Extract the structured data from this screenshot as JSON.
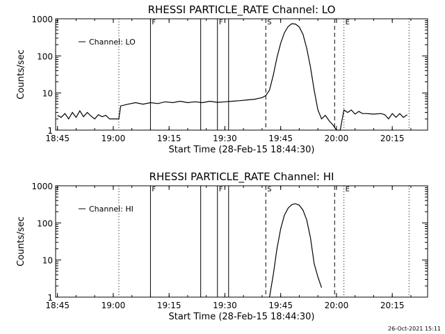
{
  "chart_data": [
    {
      "type": "line",
      "title": "RHESSI PARTICLE_RATE Channel: LO",
      "xlabel": "Start Time (28-Feb-15 18:44:30)",
      "ylabel": "Counts/sec",
      "yscale": "log",
      "ylim": [
        1,
        1000
      ],
      "xlim": [
        "18:44:30",
        "20:24:30"
      ],
      "x_ticks": [
        "18:45",
        "19:00",
        "19:15",
        "19:30",
        "19:45",
        "20:00",
        "20:15"
      ],
      "y_ticks": [
        "1",
        "10",
        "100",
        "1000"
      ],
      "legend": {
        "placement": "top-left",
        "label": "Channel: LO"
      },
      "markers": [
        {
          "time": "19:01:30",
          "style": "dotted",
          "label": ""
        },
        {
          "time": "19:10:00",
          "style": "solid",
          "label": "F"
        },
        {
          "time": "19:23:30",
          "style": "solid",
          "label": ""
        },
        {
          "time": "19:28:00",
          "style": "solid",
          "label": "F"
        },
        {
          "time": "19:31:00",
          "style": "solid",
          "label": ""
        },
        {
          "time": "19:41:00",
          "style": "dashed",
          "label": "S"
        },
        {
          "time": "19:59:30",
          "style": "dashed",
          "label": ""
        },
        {
          "time": "20:02:00",
          "style": "dotted",
          "label": "E"
        },
        {
          "time": "20:19:30",
          "style": "dotted",
          "label": ""
        }
      ],
      "series": [
        {
          "name": "Channel: LO",
          "points": [
            [
              "18:45:00",
              2.5
            ],
            [
              "18:46:00",
              2.2
            ],
            [
              "18:47:00",
              2.8
            ],
            [
              "18:48:00",
              2.0
            ],
            [
              "18:49:00",
              3.0
            ],
            [
              "18:50:00",
              2.2
            ],
            [
              "18:51:00",
              3.3
            ],
            [
              "18:52:00",
              2.3
            ],
            [
              "18:53:00",
              3.0
            ],
            [
              "18:54:00",
              2.4
            ],
            [
              "18:55:00",
              2.0
            ],
            [
              "18:56:00",
              2.6
            ],
            [
              "18:57:00",
              2.3
            ],
            [
              "18:58:00",
              2.5
            ],
            [
              "18:59:00",
              2.0
            ],
            [
              "19:00:00",
              2.0
            ],
            [
              "19:01:00",
              2.0
            ],
            [
              "19:01:30",
              2.0
            ],
            [
              "19:02:00",
              4.5
            ],
            [
              "19:04:00",
              5.0
            ],
            [
              "19:06:00",
              5.5
            ],
            [
              "19:08:00",
              5.0
            ],
            [
              "19:10:00",
              5.5
            ],
            [
              "19:12:00",
              5.2
            ],
            [
              "19:14:00",
              5.8
            ],
            [
              "19:16:00",
              5.5
            ],
            [
              "19:18:00",
              6.0
            ],
            [
              "19:20:00",
              5.5
            ],
            [
              "19:22:00",
              5.8
            ],
            [
              "19:24:00",
              5.5
            ],
            [
              "19:26:00",
              6.0
            ],
            [
              "19:28:00",
              5.6
            ],
            [
              "19:30:00",
              5.8
            ],
            [
              "19:32:00",
              6.0
            ],
            [
              "19:34:00",
              6.2
            ],
            [
              "19:36:00",
              6.5
            ],
            [
              "19:38:00",
              6.8
            ],
            [
              "19:40:00",
              7.5
            ],
            [
              "19:41:00",
              8.5
            ],
            [
              "19:42:00",
              12
            ],
            [
              "19:43:00",
              30
            ],
            [
              "19:44:00",
              90
            ],
            [
              "19:45:00",
              220
            ],
            [
              "19:46:00",
              420
            ],
            [
              "19:47:00",
              620
            ],
            [
              "19:48:00",
              740
            ],
            [
              "19:49:00",
              720
            ],
            [
              "19:50:00",
              600
            ],
            [
              "19:51:00",
              380
            ],
            [
              "19:52:00",
              160
            ],
            [
              "19:53:00",
              50
            ],
            [
              "19:54:00",
              12
            ],
            [
              "19:55:00",
              3.5
            ],
            [
              "19:56:00",
              2.0
            ],
            [
              "19:57:00",
              2.5
            ],
            [
              "19:58:00",
              1.8
            ],
            [
              "19:59:00",
              1.4
            ],
            [
              "20:00:00",
              1.0
            ],
            [
              "20:01:00",
              1.0
            ],
            [
              "20:02:00",
              3.5
            ],
            [
              "20:03:00",
              3.0
            ],
            [
              "20:04:00",
              3.5
            ],
            [
              "20:05:00",
              2.7
            ],
            [
              "20:06:00",
              3.2
            ],
            [
              "20:07:00",
              2.8
            ],
            [
              "20:08:00",
              2.8
            ],
            [
              "20:10:00",
              2.7
            ],
            [
              "20:12:00",
              2.8
            ],
            [
              "20:13:00",
              2.6
            ],
            [
              "20:14:00",
              2.0
            ],
            [
              "20:15:00",
              2.8
            ],
            [
              "20:16:00",
              2.2
            ],
            [
              "20:17:00",
              2.8
            ],
            [
              "20:18:00",
              2.2
            ],
            [
              "20:19:00",
              2.6
            ]
          ]
        }
      ]
    },
    {
      "type": "line",
      "title": "RHESSI PARTICLE_RATE Channel: HI",
      "xlabel": "Start Time (28-Feb-15 18:44:30)",
      "ylabel": "Counts/sec",
      "yscale": "log",
      "ylim": [
        1,
        1000
      ],
      "xlim": [
        "18:44:30",
        "20:24:30"
      ],
      "x_ticks": [
        "18:45",
        "19:00",
        "19:15",
        "19:30",
        "19:45",
        "20:00",
        "20:15"
      ],
      "y_ticks": [
        "1",
        "10",
        "100",
        "1000"
      ],
      "legend": {
        "placement": "top-left",
        "label": "Channel: HI"
      },
      "markers": [
        {
          "time": "19:01:30",
          "style": "dotted",
          "label": ""
        },
        {
          "time": "19:10:00",
          "style": "solid",
          "label": "F"
        },
        {
          "time": "19:23:30",
          "style": "solid",
          "label": ""
        },
        {
          "time": "19:28:00",
          "style": "solid",
          "label": "F"
        },
        {
          "time": "19:31:00",
          "style": "solid",
          "label": ""
        },
        {
          "time": "19:41:00",
          "style": "dashed",
          "label": "S"
        },
        {
          "time": "19:59:30",
          "style": "dashed",
          "label": ""
        },
        {
          "time": "20:02:00",
          "style": "dotted",
          "label": "E"
        },
        {
          "time": "20:19:30",
          "style": "dotted",
          "label": ""
        }
      ],
      "series": [
        {
          "name": "Channel: HI",
          "points": [
            [
              "19:42:00",
              1.0
            ],
            [
              "19:43:00",
              4
            ],
            [
              "19:44:00",
              20
            ],
            [
              "19:45:00",
              70
            ],
            [
              "19:46:00",
              160
            ],
            [
              "19:47:00",
              250
            ],
            [
              "19:48:00",
              310
            ],
            [
              "19:49:00",
              330
            ],
            [
              "19:50:00",
              300
            ],
            [
              "19:51:00",
              220
            ],
            [
              "19:52:00",
              120
            ],
            [
              "19:53:00",
              40
            ],
            [
              "19:54:00",
              8
            ],
            [
              "19:55:00",
              3.5
            ],
            [
              "19:56:00",
              1.8
            ]
          ]
        }
      ]
    }
  ],
  "footer": {
    "timestamp": "26-Oct-2021 15:11"
  }
}
